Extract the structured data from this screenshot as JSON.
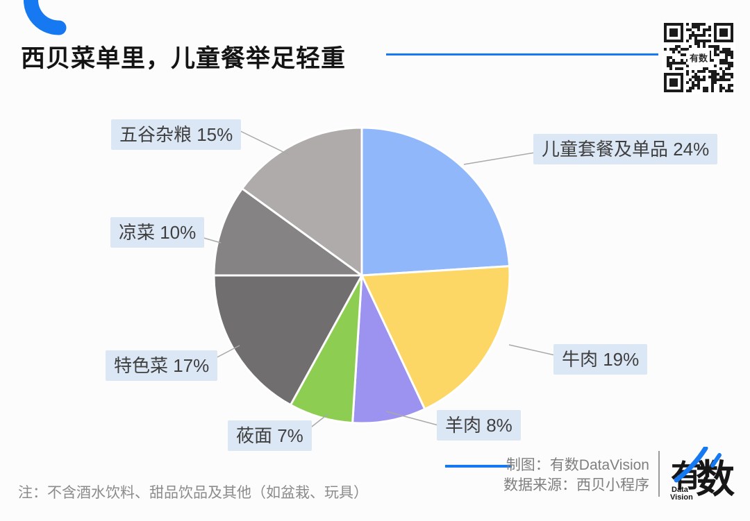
{
  "header": {
    "title": "西贝菜单里，儿童餐举足轻重",
    "accent_color": "#1779F2"
  },
  "qr": {
    "center_text": "有数"
  },
  "chart_data": {
    "type": "pie",
    "title": "西贝菜单里，儿童餐举足轻重",
    "unit": "%",
    "start_angle_deg": 0,
    "direction": "clockwise",
    "legend_position": "callout-labels",
    "slices": [
      {
        "label": "儿童套餐及单品",
        "value": 24,
        "color": "#8FB7FA"
      },
      {
        "label": "牛肉",
        "value": 19,
        "color": "#FDD765"
      },
      {
        "label": "羊肉",
        "value": 8,
        "color": "#9C92EF"
      },
      {
        "label": "莜面",
        "value": 7,
        "color": "#8DCE52"
      },
      {
        "label": "特色菜",
        "value": 17,
        "color": "#716E6F"
      },
      {
        "label": "凉菜",
        "value": 10,
        "color": "#868384"
      },
      {
        "label": "五谷杂粮",
        "value": 15,
        "color": "#AFABAB"
      }
    ],
    "callout_bg": "#DCE7F5",
    "slice_stroke": "#FFFFFF"
  },
  "callouts": [
    {
      "text": "儿童套餐及单品 24%"
    },
    {
      "text": "牛肉 19%"
    },
    {
      "text": "羊肉 8%"
    },
    {
      "text": "莜面 7%"
    },
    {
      "text": "特色菜 17%"
    },
    {
      "text": "凉菜 10%"
    },
    {
      "text": "五谷杂粮 15%"
    }
  ],
  "footer": {
    "note": "注：不含酒水饮料、甜品饮品及其他（如盆栽、玩具）",
    "credit_line1": "制图：有数DataVision",
    "credit_line2": "数据来源：西贝小程序",
    "logo_char1": "有",
    "logo_char2": "数",
    "logo_sub1": "Data",
    "logo_sub2": "Vision"
  }
}
